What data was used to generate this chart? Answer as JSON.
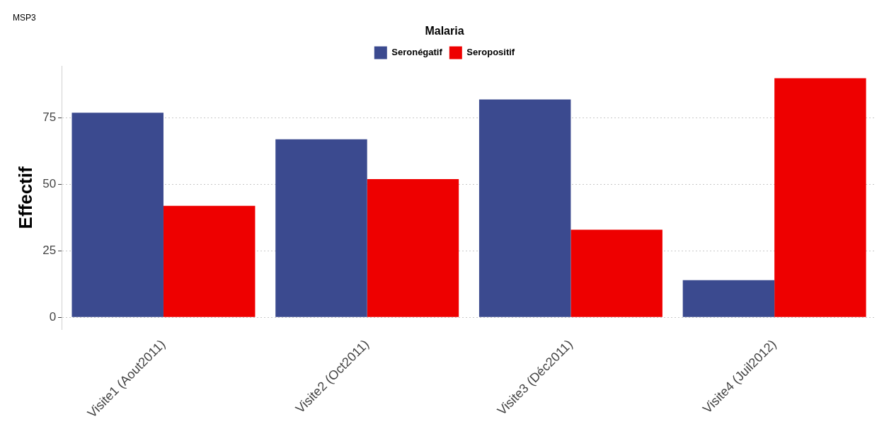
{
  "chart_data": {
    "type": "bar",
    "title": "MSP3",
    "ylabel": "Effectif",
    "legend_title": "Malaria",
    "categories": [
      "Visite1 (Aout2011)",
      "Visite2 (Oct2011)",
      "Visite3 (Déc2011)",
      "Visite4 (Juil2012)"
    ],
    "series": [
      {
        "name": "Seronégatif",
        "color": "#3b4a8f",
        "values": [
          77,
          67,
          82,
          14
        ]
      },
      {
        "name": "Seropositif",
        "color": "#ee0000",
        "values": [
          42,
          52,
          33,
          90
        ]
      }
    ],
    "ylim": [
      -4.5,
      94.5
    ],
    "yticks": [
      0,
      25,
      50,
      75
    ],
    "grid": "y",
    "legend": "top"
  }
}
